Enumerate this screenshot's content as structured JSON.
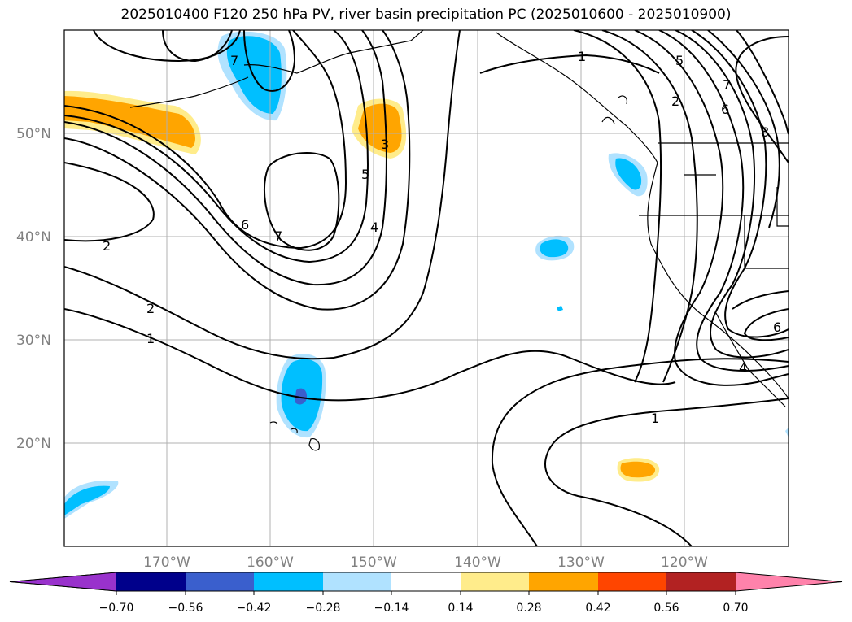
{
  "title": "2025010400 F120 250 hPa PV, river basin precipitation PC (2025010600 - 2025010900)",
  "map": {
    "lon_range": [
      -180,
      -110
    ],
    "lat_range": [
      10,
      60
    ],
    "lat_labels": [
      "20°N",
      "30°N",
      "40°N",
      "50°N"
    ],
    "lon_labels": [
      "170°W",
      "160°W",
      "150°W",
      "140°W",
      "130°W",
      "120°W"
    ],
    "contour_labels": [
      "1",
      "1",
      "2",
      "2",
      "2",
      "3",
      "4",
      "4",
      "5",
      "5",
      "6",
      "6",
      "6",
      "7",
      "7",
      "7",
      "8",
      "1"
    ]
  },
  "colorbar": {
    "labels": [
      "−0.70",
      "−0.56",
      "−0.42",
      "−0.28",
      "−0.14",
      "0.14",
      "0.28",
      "0.42",
      "0.56",
      "0.70"
    ],
    "colors": [
      "#9932cc",
      "#00008b",
      "#3a5fcd",
      "#00bfff",
      "#b0e2ff",
      "#ffffff",
      "#ffec8b",
      "#ffa500",
      "#ff4500",
      "#b22222",
      "#ff82ab"
    ]
  }
}
